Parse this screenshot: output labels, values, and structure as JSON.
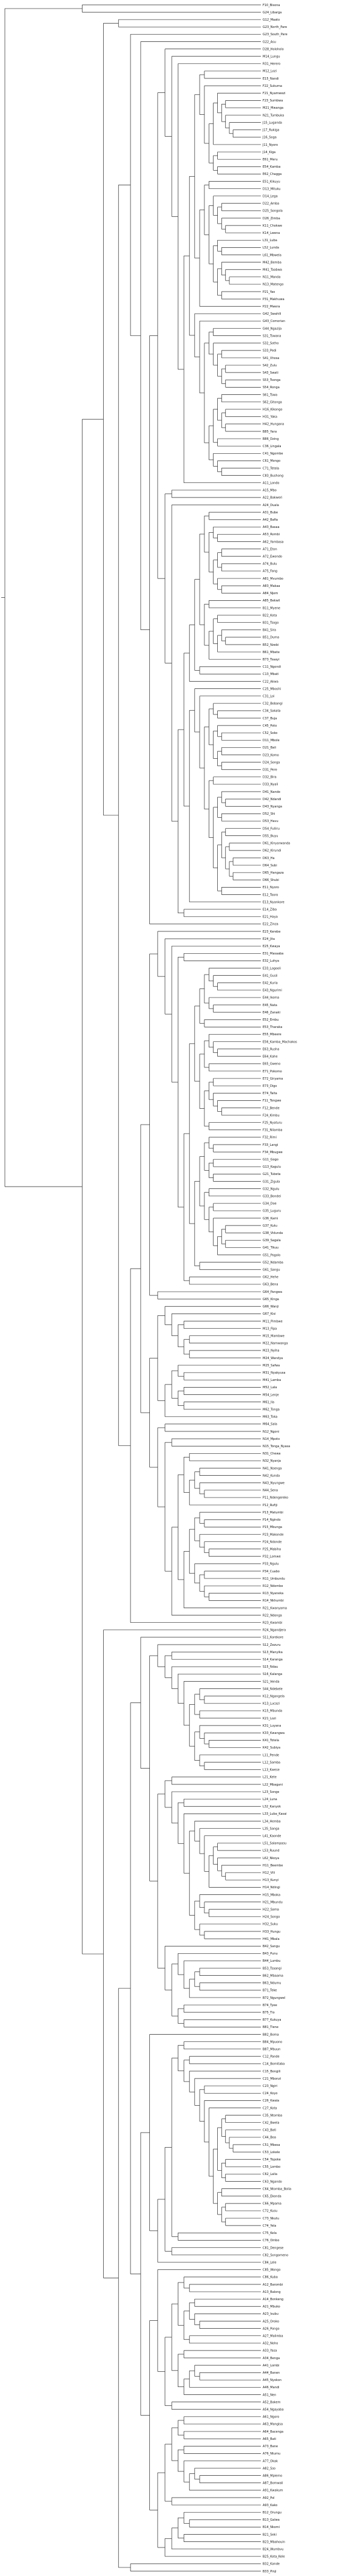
{
  "figure": {
    "type": "phylogenetic-tree",
    "line_color": "#222222",
    "label_color": "#111111",
    "background": "#ffffff"
  },
  "tips": [
    "F10_Bisona",
    "G24_Libarga",
    "G12_Maato",
    "G23_North_Pare",
    "G23_South_Pare",
    "G22_Asu",
    "D28_Holoholo",
    "M14_Lungu",
    "R31_Herero",
    "M12_Lozi",
    "E15_Nandi",
    "F22_Sukuma",
    "F21_Nyamwezi",
    "F23_Sumbwa",
    "M21_Mwanga",
    "N21_Tumbuka",
    "J15_Luganda",
    "J17_Rukiga",
    "J16_Soga",
    "J11_Nyoro",
    "J14_Kiga",
    "E61_Meru",
    "E54_Kamba",
    "E62_Chagga",
    "E51_Kikuyu",
    "D13_Mituku",
    "D14_Lega",
    "D22_Amba",
    "D25_Songola",
    "D26_Zimba",
    "K11_Chokwe",
    "K14_Lwena",
    "L31_Luba",
    "L52_Lunda",
    "L61_Mbwela",
    "M42_Bemba",
    "M41_Taabwa",
    "N11_Manda",
    "N13_Matengo",
    "P21_Yao",
    "P31_Makhuwa",
    "P22_Mwera",
    "G42_Swahili",
    "G43_Comorian",
    "G44_Ngazija",
    "S31_Tswana",
    "S32_Sotho",
    "S33_Pedi",
    "S41_Xhosa",
    "S42_Zulu",
    "S43_Swati",
    "S53_Tsonga",
    "S54_Ronga",
    "S61_Tswa",
    "S62_Gitonga",
    "H16_Kikongo",
    "H31_Yaka",
    "H42_Hungana",
    "B85_Yans",
    "B86_Dzing",
    "C36_Lingala",
    "C41_Ngombe",
    "C61_Mongo",
    "C71_Tetela",
    "C83_Bushong",
    "A11_Londo",
    "A15_Mbo",
    "A22_Bakweri",
    "A24_Duala",
    "A31_Bube",
    "A42_Bafia",
    "A43_Basaa",
    "A53_Rombi",
    "A62_Yambasa",
    "A71_Eton",
    "A72_Ewondo",
    "A74_Bulu",
    "A75_Fang",
    "A81_Mvumbo",
    "A83_Makaa",
    "A84_Njem",
    "A85_Bekwil",
    "B11_Myene",
    "B22_Kota",
    "B31_Tsogo",
    "B41_Sira",
    "B51_Duma",
    "B52_Nzebi",
    "B61_Mbete",
    "B73_Tsaayi",
    "C11_Ngondi",
    "C13_Mbati",
    "C22_Akwa",
    "C25_Mboshi",
    "C31_Loi",
    "C32_Bobangi",
    "C34_Sakata",
    "C37_Buja",
    "C45_Poto",
    "C52_Soko",
    "D11_Mbole",
    "D21_Bali",
    "D23_Komo",
    "D24_Songa",
    "D31_Pere",
    "D32_Bira",
    "D33_Nyali",
    "D41_Nande",
    "D42_Ndandi",
    "D43_Nyanga",
    "D52_Shi",
    "D53_Havu",
    "D54_Fuliiru",
    "D55_Buyu",
    "D61_Kinyarwanda",
    "D62_Kirundi",
    "D63_Ha",
    "D64_Subi",
    "D65_Hangaza",
    "D66_Shubi",
    "E11_Nyoro",
    "E12_Tooro",
    "E13_Nyankore",
    "E14_Ziba",
    "E21_Haya",
    "E22_Zinza",
    "E23_Kerebe",
    "E24_Jita",
    "E25_Kwaya",
    "E31_Masaaba",
    "E32_Luhya",
    "E33_Logooli",
    "E41_Gusii",
    "E42_Kuria",
    "E43_Ngurimi",
    "E44_Ikoma",
    "E45_Nata",
    "E46_Zanaki",
    "E52_Embu",
    "E53_Tharaka",
    "E55_Mbeere",
    "E56_Kamba_Machakos",
    "E63_Rusha",
    "E64_Kahe",
    "E65_Gweno",
    "E71_Pokomo",
    "E72_Giryama",
    "E73_Digo",
    "E74_Taita",
    "F11_Tongwe",
    "F12_Bende",
    "F24_Kimbu",
    "F25_Nyaturu",
    "F31_Nilamba",
    "F32_Rimi",
    "F33_Langi",
    "F34_Mbugwe",
    "G11_Gogo",
    "G13_Kagulu",
    "G21_Tubeta",
    "G31_Zigula",
    "G32_Ngulu",
    "G33_Bondei",
    "G34_Doe",
    "G35_Luguru",
    "G36_Kami",
    "G37_Kutu",
    "G38_Vidunda",
    "G39_Sagala",
    "G41_Tikuu",
    "G51_Pogolo",
    "G52_Ndamba",
    "G61_Sangu",
    "G62_Hehe",
    "G63_Bena",
    "G64_Pangwa",
    "G65_Kinga",
    "G66_Wanji",
    "G67_Kisi",
    "M11_Pimbwe",
    "M13_Fipa",
    "M15_Mambwe",
    "M22_Namwanga",
    "M23_Nyiha",
    "M24_Wandya",
    "M25_Safwa",
    "M31_Nyakyusa",
    "M41_Lamba",
    "M52_Lala",
    "M54_Lenje",
    "M61_Ila",
    "M62_Tonga",
    "M63_Toka",
    "M64_Sala",
    "N12_Ngoni",
    "N14_Mpoto",
    "N15_Tonga_Nyasa",
    "N31_Chewa",
    "N32_Nyanja",
    "N41_Nsenga",
    "N42_Kunda",
    "N43_Nyungwe",
    "N44_Sena",
    "P11_Ndengereko",
    "P12_Rufiji",
    "P13_Matumbi",
    "P14_Ngindo",
    "P15_Mbunga",
    "P23_Makonde",
    "P24_Ndonde",
    "P25_Mabiha",
    "P32_Lomwe",
    "P33_Ngulu",
    "P34_Cuabo",
    "R11_Umbundu",
    "R12_Ndombe",
    "R13_Nyaneka",
    "R14_Nkhumbi",
    "R21_Kwanyama",
    "R22_Ndonga",
    "R23_Kwambi",
    "R24_Ngandjera",
    "S11_Korekore",
    "S12_Zezuru",
    "S13_Manyika",
    "S14_Karanga",
    "S15_Ndau",
    "S16_Kalanga",
    "S21_Venda",
    "S44_Ndebele",
    "K12_Ngangela",
    "K13_Lucazi",
    "K15_Mbunda",
    "K21_Lozi",
    "K31_Luyana",
    "K33_Kwangwa",
    "K41_Totela",
    "K42_Subiya",
    "L11_Pende",
    "L12_Samba",
    "L13_Kwese",
    "L21_Kete",
    "L22_Mbagani",
    "L23_Songe",
    "L24_Luna",
    "L32_Kanyok",
    "L33_Luba_Kasai",
    "L34_Hemba",
    "L35_Sanga",
    "L41_Kaonde",
    "L51_Salampasu",
    "L53_Ruund",
    "L62_Nkoya",
    "H11_Beembe",
    "H12_Vili",
    "H13_Kunyi",
    "H14_Ndingi",
    "H15_Mboka",
    "H21_Mbundu",
    "H22_Sama",
    "H24_Songo",
    "H32_Suku",
    "H33_Hungu",
    "H41_Mbala",
    "B42_Sangu",
    "B43_Punu",
    "B44_Lumbu",
    "B53_Tsaangi",
    "B62_Mbaama",
    "B63_Ndumu",
    "B71_Teke",
    "B72_Ngungwel",
    "B74_Tyee",
    "B75_Tio",
    "B77_Kukuya",
    "B81_Tiene",
    "B82_Boma",
    "B84_Mpuono",
    "B87_Mbuun",
    "C12_Pande",
    "C14_Bomitaba",
    "C15_Bongili",
    "C21_Mbonzi",
    "C23_Ngiri",
    "C24_Koyo",
    "C26_Kwala",
    "C27_Kota",
    "C35_Ntomba",
    "C42_Bwela",
    "C43_Bati",
    "C44_Boa",
    "C51_Mbesa",
    "C53_Lokele",
    "C54_Topoke",
    "C55_Lombo",
    "C62_Lalia",
    "C63_Ngando",
    "C64_Ntomba_Bolia",
    "C65_Ekonda",
    "C66_Mpama",
    "C72_Kusu",
    "C73_Nkutu",
    "C74_Yela",
    "C75_Kela",
    "C76_Ombo",
    "C81_Dengese",
    "C82_Songomeno",
    "C84_Lele",
    "C85_Wongo",
    "C86_Kuba",
    "A12_Barombi",
    "A13_Balong",
    "A14_Bonkeng",
    "A21_Mbuko",
    "A23_Isubu",
    "A25_Oroko",
    "A26_Pongo",
    "A27_Malimba",
    "A32_Noho",
    "A33_Yasa",
    "A34_Benga",
    "A41_Lombi",
    "A44_Banen",
    "A45_Nyokon",
    "A46_Mandi",
    "A51_Nen",
    "A52_Bakem",
    "A54_Ngayaba",
    "A61_Ngoro",
    "A63_Mangisa",
    "A64_Bacenga",
    "A65_Bati",
    "A73_Bane",
    "A76_Ntumu",
    "A77_Okak",
    "A82_Sso",
    "A86_Mpiemo",
    "A87_Bomwali",
    "A91_Kwakum",
    "A92_Pol",
    "A93_Kako",
    "B12_Orungu",
    "B13_Galwa",
    "B14_Nkomi",
    "B21_Seki",
    "B23_Mbahouin",
    "B24_Wumbvu",
    "B25_Kota_Kele",
    "B32_Kande",
    "B33_Pinji"
  ]
}
